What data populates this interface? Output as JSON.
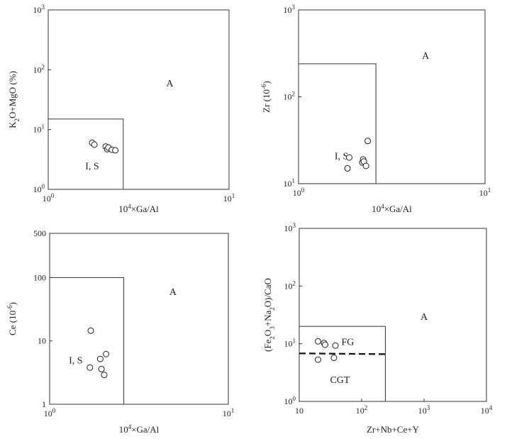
{
  "chart_data": [
    {
      "type": "scatter",
      "title": "",
      "xlabel": "10⁴×Ga/Al",
      "ylabel": "K₂O+MgO (%)",
      "xscale": "log",
      "yscale": "log",
      "xlim": [
        1,
        10
      ],
      "ylim": [
        1,
        1000
      ],
      "xticks": [
        {
          "v": 1,
          "base": "10",
          "exp": "0"
        },
        {
          "v": 10,
          "base": "10",
          "exp": "1"
        }
      ],
      "yticks": [
        {
          "v": 1,
          "base": "10",
          "exp": "0"
        },
        {
          "v": 10,
          "base": "10",
          "exp": "1"
        },
        {
          "v": 100,
          "base": "10",
          "exp": "2"
        },
        {
          "v": 1000,
          "base": "10",
          "exp": "3"
        }
      ],
      "field_box": {
        "x": [
          1,
          2.6
        ],
        "y": [
          1,
          15
        ]
      },
      "field_labels": [
        {
          "text": "I, S",
          "x": 1.75,
          "y": 2.5
        },
        {
          "text": "A",
          "x": 4.7,
          "y": 60
        }
      ],
      "points": [
        {
          "x": 1.75,
          "y": 6.0
        },
        {
          "x": 1.8,
          "y": 5.6
        },
        {
          "x": 2.08,
          "y": 5.2
        },
        {
          "x": 2.12,
          "y": 4.7
        },
        {
          "x": 2.15,
          "y": 5.0
        },
        {
          "x": 2.25,
          "y": 4.6
        },
        {
          "x": 2.35,
          "y": 4.5
        }
      ]
    },
    {
      "type": "scatter",
      "title": "",
      "xlabel": "10⁴×Ga/Al",
      "ylabel": "Zr (10⁻⁶)",
      "xscale": "log",
      "yscale": "log",
      "xlim": [
        1,
        10
      ],
      "ylim": [
        10,
        1000
      ],
      "xticks": [
        {
          "v": 1,
          "base": "10",
          "exp": "0"
        },
        {
          "v": 10,
          "base": "10",
          "exp": "1"
        }
      ],
      "yticks": [
        {
          "v": 10,
          "base": "10",
          "exp": "1"
        },
        {
          "v": 100,
          "base": "10",
          "exp": "2"
        },
        {
          "v": 1000,
          "base": "10",
          "exp": "3"
        }
      ],
      "field_box": {
        "x": [
          1,
          2.6
        ],
        "y": [
          10,
          240
        ]
      },
      "field_labels": [
        {
          "text": "I, S",
          "x": 1.7,
          "y": 21
        },
        {
          "text": "A",
          "x": 4.8,
          "y": 300
        }
      ],
      "points": [
        {
          "x": 1.83,
          "y": 15
        },
        {
          "x": 1.87,
          "y": 20
        },
        {
          "x": 2.2,
          "y": 17.5
        },
        {
          "x": 2.22,
          "y": 19
        },
        {
          "x": 2.24,
          "y": 18
        },
        {
          "x": 2.3,
          "y": 16
        },
        {
          "x": 2.35,
          "y": 31
        }
      ]
    },
    {
      "type": "scatter",
      "title": "",
      "xlabel": "10⁴×Ga/Al",
      "ylabel": "Ce (10⁻⁶)",
      "xscale": "log",
      "yscale": "log",
      "xlim": [
        1,
        10
      ],
      "ylim": [
        1,
        500
      ],
      "xticks": [
        {
          "v": 1,
          "base": "10",
          "exp": "0"
        },
        {
          "v": 10,
          "base": "10",
          "exp": "1"
        }
      ],
      "yticks": [
        {
          "v": 1,
          "base": "1",
          "exp": ""
        },
        {
          "v": 10,
          "base": "10",
          "exp": ""
        },
        {
          "v": 100,
          "base": "100",
          "exp": ""
        },
        {
          "v": 500,
          "base": "500",
          "exp": ""
        }
      ],
      "field_box": {
        "x": [
          1,
          2.6
        ],
        "y": [
          1,
          100
        ]
      },
      "field_labels": [
        {
          "text": "I, S",
          "x": 1.4,
          "y": 5
        },
        {
          "text": "A",
          "x": 4.9,
          "y": 60
        }
      ],
      "points": [
        {
          "x": 1.7,
          "y": 14.5
        },
        {
          "x": 1.68,
          "y": 3.8
        },
        {
          "x": 1.92,
          "y": 5.2
        },
        {
          "x": 1.95,
          "y": 3.6
        },
        {
          "x": 2.02,
          "y": 2.9
        },
        {
          "x": 2.07,
          "y": 6.2
        }
      ]
    },
    {
      "type": "scatter",
      "title": "",
      "xlabel": "Zr+Nb+Ce+Y",
      "ylabel": "(Fe₂O₃+Na₂O)/CaO",
      "xscale": "log",
      "yscale": "log",
      "xlim": [
        10,
        10000
      ],
      "ylim": [
        1,
        1000
      ],
      "xticks": [
        {
          "v": 10,
          "base": "10",
          "exp": ""
        },
        {
          "v": 100,
          "base": "10",
          "exp": "2"
        },
        {
          "v": 1000,
          "base": "10",
          "exp": "3"
        },
        {
          "v": 10000,
          "base": "10",
          "exp": "4"
        }
      ],
      "yticks": [
        {
          "v": 1,
          "base": "10",
          "exp": "0"
        },
        {
          "v": 10,
          "base": "10",
          "exp": "1"
        },
        {
          "v": 100,
          "base": "10",
          "exp": "2"
        },
        {
          "v": 1000,
          "base": "10",
          "exp": "3"
        }
      ],
      "field_box": {
        "x": [
          10,
          240
        ],
        "y": [
          1,
          20
        ]
      },
      "dashed_line": {
        "x": [
          10,
          240
        ],
        "y": [
          6.8,
          6.6
        ]
      },
      "field_labels": [
        {
          "text": "FG",
          "x": 60,
          "y": 11
        },
        {
          "text": "CGT",
          "x": 45,
          "y": 2.4
        },
        {
          "text": "A",
          "x": 1000,
          "y": 30
        }
      ],
      "points": [
        {
          "x": 20,
          "y": 11
        },
        {
          "x": 25,
          "y": 10.3
        },
        {
          "x": 26,
          "y": 9.6
        },
        {
          "x": 38,
          "y": 9.3
        },
        {
          "x": 20,
          "y": 5.3
        },
        {
          "x": 36,
          "y": 5.7
        }
      ]
    }
  ]
}
